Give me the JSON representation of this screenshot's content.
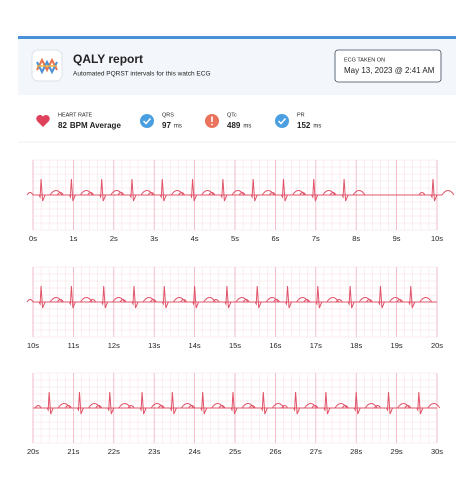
{
  "header": {
    "title": "QALY report",
    "subtitle": "Automated PQRST intervals for this watch ECG",
    "taken_label": "ECG TAKEN ON",
    "taken_value": "May 13, 2023 @ 2:41 AM"
  },
  "metrics": [
    {
      "label": "HEART RATE",
      "value": 82,
      "unit": "BPM Average"
    },
    {
      "label": "QRS",
      "value": 97,
      "unit": "ms"
    },
    {
      "label": "QTc",
      "value": 489,
      "unit": "ms"
    },
    {
      "label": "PR",
      "value": 152,
      "unit": "ms"
    }
  ],
  "chart_data": [
    {
      "type": "ecg",
      "color": "#e0546a",
      "xlim": [
        0,
        10
      ],
      "xticks": [
        {
          "value": 0,
          "label": "0s"
        },
        {
          "value": 1,
          "label": "1s"
        },
        {
          "value": 2,
          "label": "2s"
        },
        {
          "value": 3,
          "label": "3s"
        },
        {
          "value": 4,
          "label": "4s"
        },
        {
          "value": 5,
          "label": "5s"
        },
        {
          "value": 6,
          "label": "6s"
        },
        {
          "value": 7,
          "label": "7s"
        },
        {
          "value": 8,
          "label": "8s"
        },
        {
          "value": 9,
          "label": "9s"
        },
        {
          "value": 10,
          "label": "10s"
        }
      ],
      "beats": [
        0.2,
        0.95,
        1.7,
        2.45,
        3.2,
        3.95,
        4.7,
        5.45,
        6.2,
        6.95,
        7.7,
        9.9
      ]
    },
    {
      "type": "ecg",
      "color": "#e0546a",
      "xlim": [
        10,
        20
      ],
      "xticks": [
        {
          "value": 10,
          "label": "10s"
        },
        {
          "value": 11,
          "label": "11s"
        },
        {
          "value": 12,
          "label": "12s"
        },
        {
          "value": 13,
          "label": "13s"
        },
        {
          "value": 14,
          "label": "14s"
        },
        {
          "value": 15,
          "label": "15s"
        },
        {
          "value": 16,
          "label": "16s"
        },
        {
          "value": 17,
          "label": "17s"
        },
        {
          "value": 18,
          "label": "18s"
        },
        {
          "value": 19,
          "label": "19s"
        },
        {
          "value": 20,
          "label": "20s"
        }
      ],
      "beats": [
        10.2,
        10.95,
        11.75,
        12.5,
        13.25,
        14.0,
        14.8,
        15.55,
        16.3,
        17.05,
        17.85,
        18.6,
        19.35
      ]
    },
    {
      "type": "ecg",
      "color": "#e0546a",
      "xlim": [
        20,
        30
      ],
      "xticks": [
        {
          "value": 20,
          "label": "20s"
        },
        {
          "value": 21,
          "label": "21s"
        },
        {
          "value": 22,
          "label": "22s"
        },
        {
          "value": 23,
          "label": "23s"
        },
        {
          "value": 24,
          "label": "24s"
        },
        {
          "value": 25,
          "label": "25s"
        },
        {
          "value": 26,
          "label": "26s"
        },
        {
          "value": 27,
          "label": "27s"
        },
        {
          "value": 28,
          "label": "28s"
        },
        {
          "value": 29,
          "label": "29s"
        },
        {
          "value": 30,
          "label": "30s"
        }
      ],
      "beats": [
        20.4,
        21.15,
        21.9,
        22.7,
        23.45,
        24.2,
        24.95,
        25.7,
        26.5,
        27.25,
        28.0,
        28.8,
        29.55
      ]
    }
  ]
}
